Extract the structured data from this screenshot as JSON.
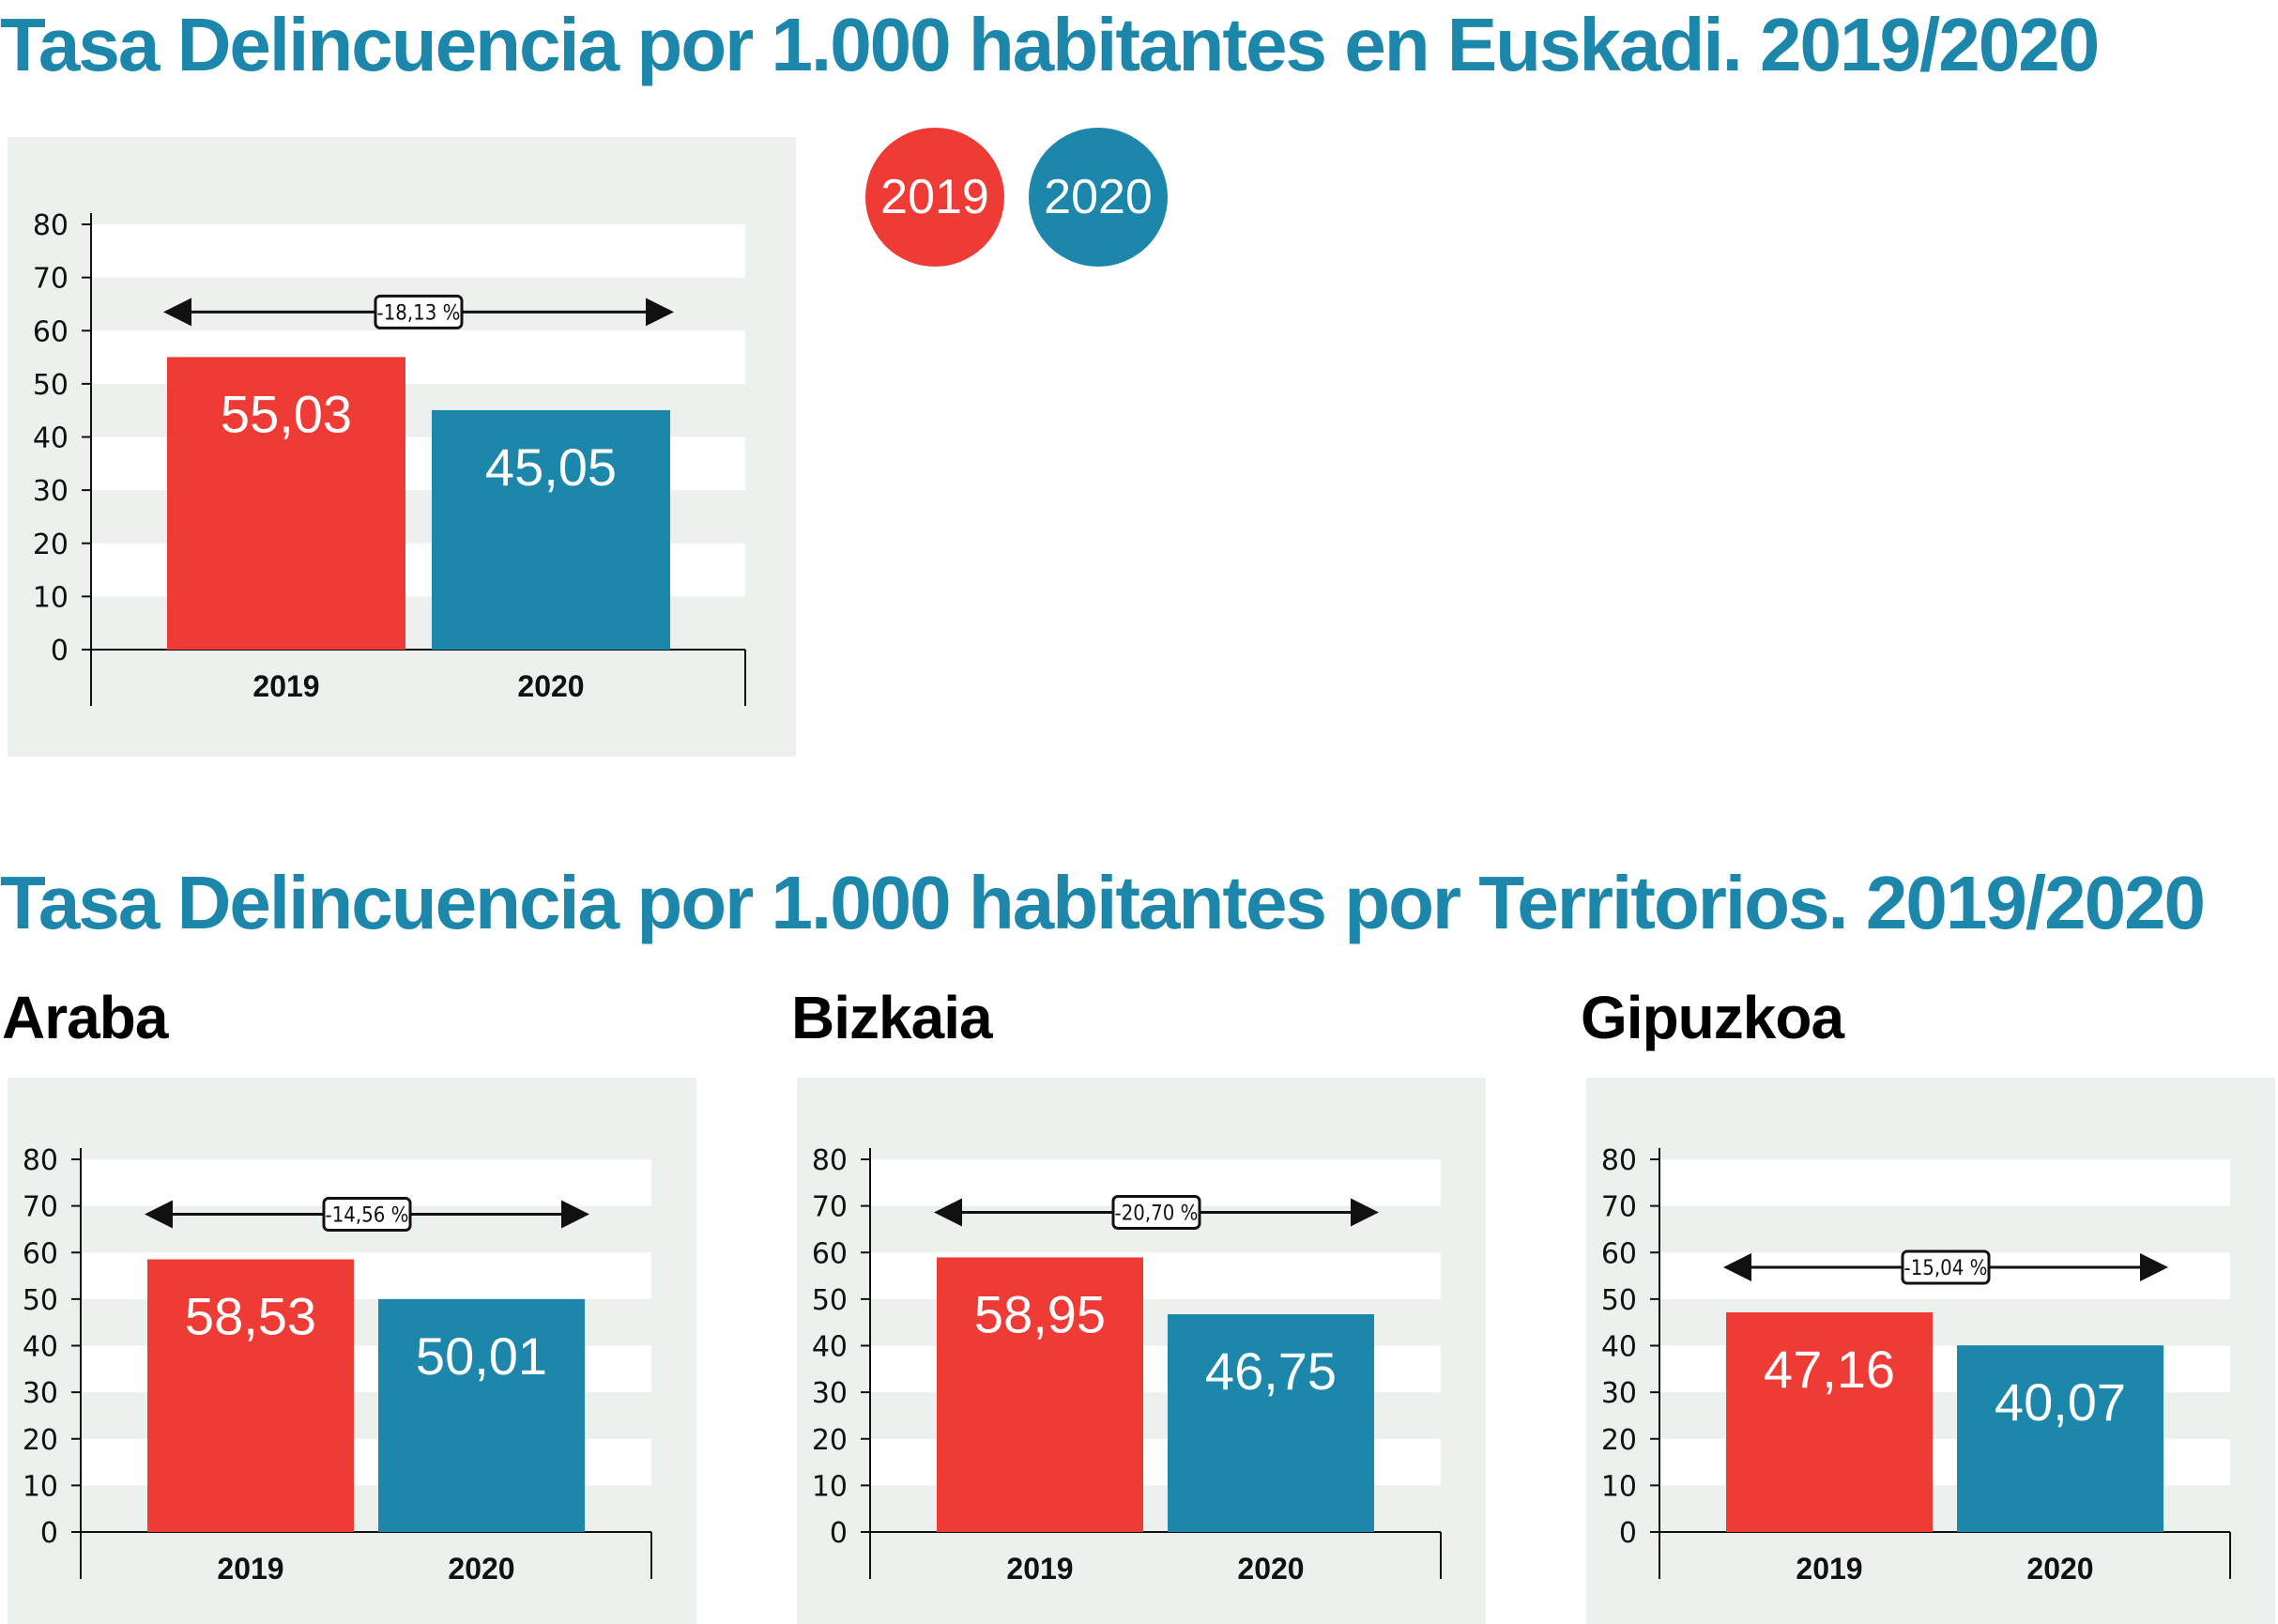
{
  "titles": {
    "euskadi": "Tasa Delincuencia por 1.000 habitantes en Euskadi. 2019/2020",
    "territorios": "Tasa Delincuencia por 1.000 habitantes por Territorios. 2019/2020"
  },
  "legend": [
    {
      "label": "2019",
      "color": "#ee3b36"
    },
    {
      "label": "2020",
      "color": "#1d87ab"
    }
  ],
  "chart_data": [
    {
      "type": "bar",
      "name": "Euskadi",
      "categories": [
        "2019",
        "2020"
      ],
      "values": [
        55.03,
        45.05
      ],
      "value_labels": [
        "55,03",
        "45,05"
      ],
      "change_label": "-18,13 %",
      "ylim": [
        0,
        80
      ],
      "yticks": [
        "0",
        "10",
        "20",
        "30",
        "40",
        "50",
        "60",
        "70",
        "80"
      ],
      "colors": [
        "#ee3b36",
        "#1d87ab"
      ]
    },
    {
      "type": "bar",
      "name": "Araba",
      "categories": [
        "2019",
        "2020"
      ],
      "values": [
        58.53,
        50.01
      ],
      "value_labels": [
        "58,53",
        "50,01"
      ],
      "change_label": "-14,56 %",
      "ylim": [
        0,
        80
      ],
      "yticks": [
        "0",
        "10",
        "20",
        "30",
        "40",
        "50",
        "60",
        "70",
        "80"
      ],
      "colors": [
        "#ee3b36",
        "#1d87ab"
      ]
    },
    {
      "type": "bar",
      "name": "Bizkaia",
      "categories": [
        "2019",
        "2020"
      ],
      "values": [
        58.95,
        46.75
      ],
      "value_labels": [
        "58,95",
        "46,75"
      ],
      "change_label": "-20,70 %",
      "ylim": [
        0,
        80
      ],
      "yticks": [
        "0",
        "10",
        "20",
        "30",
        "40",
        "50",
        "60",
        "70",
        "80"
      ],
      "colors": [
        "#ee3b36",
        "#1d87ab"
      ]
    },
    {
      "type": "bar",
      "name": "Gipuzkoa",
      "categories": [
        "2019",
        "2020"
      ],
      "values": [
        47.16,
        40.07
      ],
      "value_labels": [
        "47,16",
        "40,07"
      ],
      "change_label": "-15,04 %",
      "ylim": [
        0,
        80
      ],
      "yticks": [
        "0",
        "10",
        "20",
        "30",
        "40",
        "50",
        "60",
        "70",
        "80"
      ],
      "colors": [
        "#ee3b36",
        "#1d87ab"
      ]
    }
  ]
}
